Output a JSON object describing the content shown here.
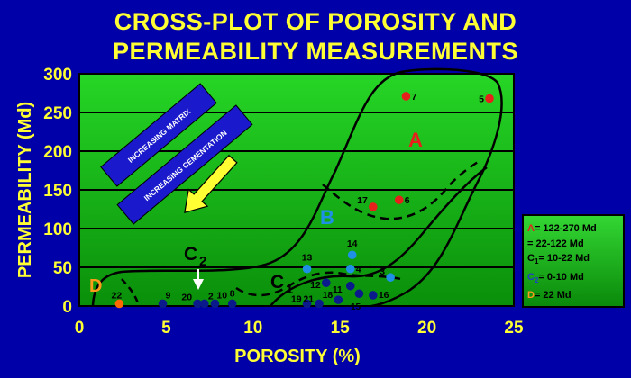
{
  "title": {
    "line1": "CROSS-PLOT OF POROSITY AND",
    "line2": "PERMEABILITY MEASUREMENTS"
  },
  "chart_data": {
    "type": "scatter",
    "title": "CROSS-PLOT OF POROSITY AND PERMEABILITY MEASUREMENTS",
    "xlabel": "POROSITY (%)",
    "ylabel": "PERMEABILITY (Md)",
    "xlim": [
      0,
      25
    ],
    "ylim": [
      0,
      300
    ],
    "xticks": [
      0,
      5,
      10,
      15,
      20,
      25
    ],
    "yticks": [
      0,
      50,
      100,
      150,
      200,
      250,
      300
    ],
    "grid": "horizontal",
    "legend_position": "right",
    "colors": {
      "A": "#e8201c",
      "B": "#1e90e6",
      "C": "#0a1a8c",
      "D": "#ff6a00",
      "plot_top": "#26d626",
      "plot_bottom": "#0a8f0a"
    },
    "points": [
      {
        "label": "7",
        "x": 18.8,
        "y": 271,
        "group": "A"
      },
      {
        "label": "5",
        "x": 23.6,
        "y": 268,
        "group": "A"
      },
      {
        "label": "6",
        "x": 18.4,
        "y": 137,
        "group": "A"
      },
      {
        "label": "17",
        "x": 16.9,
        "y": 128,
        "group": "A"
      },
      {
        "label": "14",
        "x": 15.7,
        "y": 66,
        "group": "B"
      },
      {
        "label": "13",
        "x": 13.1,
        "y": 48,
        "group": "B"
      },
      {
        "label": "4",
        "x": 15.6,
        "y": 48,
        "group": "B"
      },
      {
        "label": "3",
        "x": 17.9,
        "y": 37,
        "group": "B"
      },
      {
        "label": "12",
        "x": 14.2,
        "y": 30,
        "group": "C1"
      },
      {
        "label": "",
        "x": 15.6,
        "y": 26,
        "group": "C1"
      },
      {
        "label": "16",
        "x": 16.9,
        "y": 14,
        "group": "C1"
      },
      {
        "label": "",
        "x": 16.1,
        "y": 16,
        "group": "C1"
      },
      {
        "label": "19",
        "x": 13.1,
        "y": 3,
        "group": "C1"
      },
      {
        "label": "21",
        "x": 13.8,
        "y": 3,
        "group": "C1"
      },
      {
        "label": "18",
        "x": 14.9,
        "y": 8,
        "group": "C1"
      },
      {
        "label": "9",
        "x": 4.8,
        "y": 3,
        "group": "C2"
      },
      {
        "label": "20",
        "x": 6.8,
        "y": 3,
        "group": "C2"
      },
      {
        "label": "2",
        "x": 7.2,
        "y": 3,
        "group": "C2"
      },
      {
        "label": "10",
        "x": 7.8,
        "y": 3,
        "group": "C2"
      },
      {
        "label": "8",
        "x": 8.8,
        "y": 3,
        "group": "C2"
      },
      {
        "label": "22",
        "x": 2.3,
        "y": 3,
        "group": "D"
      }
    ],
    "text_labels": {
      "11": "11",
      "15": "15"
    },
    "region_labels": {
      "A": "A",
      "B": "B",
      "C2_main": "C",
      "C2_sub": "2",
      "C1_main": "C",
      "C1_sub": "1",
      "D": "D"
    },
    "annotations": [
      {
        "id": "matrix",
        "text": "INCREASING MATRIX"
      },
      {
        "id": "cementation",
        "text": "INCREASING CEMENTATION"
      }
    ],
    "legend": [
      {
        "key": "A",
        "prefix": "A",
        "sub": "",
        "text": "= 122-270 Md",
        "color": "#e8201c"
      },
      {
        "key": "B",
        "prefix": "",
        "sub": "",
        "text": "= 22-122 Md",
        "color": "#1e90e6"
      },
      {
        "key": "C1",
        "prefix": "C",
        "sub": "1",
        "text": "= 10-22 Md",
        "color": "#000000"
      },
      {
        "key": "C2",
        "prefix": "C",
        "sub": "2",
        "text": "= 0-10 Md",
        "color": "#1e40c8"
      },
      {
        "key": "D",
        "prefix": "D",
        "sub": "",
        "text": "= 22 Md",
        "color": "#ff9a1a"
      }
    ]
  }
}
